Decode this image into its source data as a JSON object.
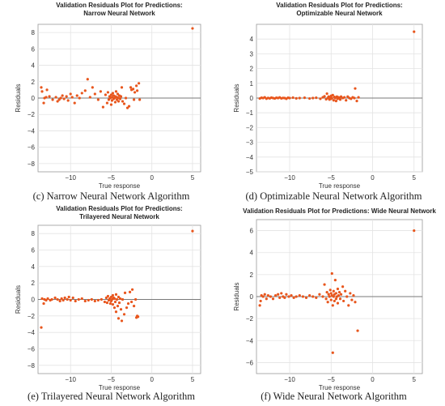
{
  "colors": {
    "marker": "#e8561d",
    "grid": "#e3e3e3",
    "axis": "#999999",
    "zero": "#7a7a7a"
  },
  "chart_data": [
    {
      "type": "scatter",
      "title_lines": [
        "Validation Residuals Plot for Predictions:",
        "Narrow Neural Network"
      ],
      "caption": "(c) Narrow Neural Network Algorithm",
      "xlabel": "True response",
      "ylabel": "Residuals",
      "xlim": [
        -14,
        6
      ],
      "ylim": [
        -9,
        9
      ],
      "xticks": [
        -10,
        -5,
        0,
        5
      ],
      "yticks": [
        -8,
        -6,
        -4,
        -2,
        0,
        2,
        4,
        6,
        8
      ],
      "grid": true,
      "points": [
        [
          -13.6,
          1.3
        ],
        [
          -13.5,
          0.8
        ],
        [
          -13.3,
          -0.6
        ],
        [
          -13.2,
          0.0
        ],
        [
          -13.0,
          0.1
        ],
        [
          -12.9,
          1.0
        ],
        [
          -12.6,
          0.2
        ],
        [
          -12.2,
          -0.2
        ],
        [
          -11.8,
          0.1
        ],
        [
          -11.6,
          -0.4
        ],
        [
          -11.4,
          -0.2
        ],
        [
          -11.2,
          0.0
        ],
        [
          -11.0,
          0.3
        ],
        [
          -10.8,
          -0.1
        ],
        [
          -10.5,
          0.2
        ],
        [
          -10.3,
          -0.3
        ],
        [
          -10.0,
          0.5
        ],
        [
          -9.8,
          0.1
        ],
        [
          -9.5,
          -0.6
        ],
        [
          -9.2,
          0.3
        ],
        [
          -8.9,
          0.0
        ],
        [
          -8.6,
          0.6
        ],
        [
          -8.2,
          0.9
        ],
        [
          -7.9,
          2.3
        ],
        [
          -7.6,
          0.1
        ],
        [
          -7.3,
          1.3
        ],
        [
          -7.0,
          0.5
        ],
        [
          -6.6,
          -0.2
        ],
        [
          -6.3,
          0.8
        ],
        [
          -6.0,
          -1.1
        ],
        [
          -5.7,
          0.4
        ],
        [
          -5.5,
          -0.6
        ],
        [
          -5.4,
          0.7
        ],
        [
          -5.3,
          -0.2
        ],
        [
          -5.2,
          0.2
        ],
        [
          -5.1,
          0.0
        ],
        [
          -5.0,
          -0.8
        ],
        [
          -5.0,
          0.4
        ],
        [
          -4.9,
          0.1
        ],
        [
          -4.9,
          -0.3
        ],
        [
          -4.8,
          0.6
        ],
        [
          -4.7,
          -0.1
        ],
        [
          -4.7,
          0.3
        ],
        [
          -4.6,
          0.0
        ],
        [
          -4.5,
          -0.5
        ],
        [
          -4.5,
          0.2
        ],
        [
          -4.4,
          0.8
        ],
        [
          -4.3,
          -0.2
        ],
        [
          -4.3,
          0.1
        ],
        [
          -4.2,
          0.5
        ],
        [
          -4.1,
          -0.4
        ],
        [
          -4.1,
          0.0
        ],
        [
          -4.0,
          0.3
        ],
        [
          -3.9,
          -0.1
        ],
        [
          -3.8,
          0.2
        ],
        [
          -3.7,
          1.3
        ],
        [
          -3.6,
          -0.4
        ],
        [
          -3.4,
          -0.7
        ],
        [
          -3.2,
          0.0
        ],
        [
          -3.0,
          -1.2
        ],
        [
          -2.8,
          -1.0
        ],
        [
          -2.6,
          1.3
        ],
        [
          -2.5,
          1.0
        ],
        [
          -2.3,
          1.1
        ],
        [
          -2.2,
          -0.2
        ],
        [
          -2.1,
          0.7
        ],
        [
          -1.9,
          1.5
        ],
        [
          -1.8,
          0.9
        ],
        [
          -1.6,
          1.8
        ],
        [
          -1.5,
          -0.2
        ],
        [
          5.0,
          8.5
        ]
      ]
    },
    {
      "type": "scatter",
      "title_lines": [
        "Validation Residuals Plot for Predictions:",
        "Optimizable Neural Network"
      ],
      "caption": "(d) Optimizable Neural Network Algorithm",
      "xlabel": "True response",
      "ylabel": "Residuals",
      "xlim": [
        -14,
        6
      ],
      "ylim": [
        -5,
        5
      ],
      "xticks": [
        -10,
        -5,
        0,
        5
      ],
      "yticks": [
        -5,
        -4,
        -3,
        -2,
        -1,
        0,
        1,
        2,
        3,
        4
      ],
      "grid": true,
      "points": [
        [
          -13.6,
          -0.03
        ],
        [
          -13.4,
          0.02
        ],
        [
          -13.2,
          0.0
        ],
        [
          -13.0,
          0.05
        ],
        [
          -12.8,
          -0.04
        ],
        [
          -12.6,
          0.01
        ],
        [
          -12.4,
          -0.02
        ],
        [
          -12.2,
          0.03
        ],
        [
          -12.0,
          0.0
        ],
        [
          -11.8,
          -0.03
        ],
        [
          -11.6,
          0.02
        ],
        [
          -11.4,
          0.0
        ],
        [
          -11.2,
          0.04
        ],
        [
          -11.0,
          -0.02
        ],
        [
          -10.8,
          0.01
        ],
        [
          -10.6,
          0.0
        ],
        [
          -10.4,
          -0.05
        ],
        [
          -10.2,
          0.02
        ],
        [
          -10.0,
          0.0
        ],
        [
          -9.6,
          0.03
        ],
        [
          -9.2,
          -0.02
        ],
        [
          -8.8,
          0.0
        ],
        [
          -8.2,
          0.02
        ],
        [
          -7.6,
          -0.03
        ],
        [
          -7.2,
          0.0
        ],
        [
          -6.8,
          0.02
        ],
        [
          -6.3,
          -0.05
        ],
        [
          -6.0,
          0.05
        ],
        [
          -5.8,
          0.12
        ],
        [
          -5.6,
          -0.08
        ],
        [
          -5.5,
          0.3
        ],
        [
          -5.4,
          0.0
        ],
        [
          -5.3,
          0.1
        ],
        [
          -5.2,
          -0.1
        ],
        [
          -5.1,
          0.05
        ],
        [
          -5.0,
          0.15
        ],
        [
          -5.0,
          -0.05
        ],
        [
          -4.9,
          0.0
        ],
        [
          -4.8,
          0.2
        ],
        [
          -4.7,
          -0.15
        ],
        [
          -4.6,
          0.08
        ],
        [
          -4.5,
          0.0
        ],
        [
          -4.4,
          -0.2
        ],
        [
          -4.3,
          0.1
        ],
        [
          -4.2,
          -0.05
        ],
        [
          -4.1,
          0.05
        ],
        [
          -4.0,
          0.0
        ],
        [
          -3.9,
          -0.1
        ],
        [
          -3.8,
          0.1
        ],
        [
          -3.6,
          0.0
        ],
        [
          -3.4,
          0.05
        ],
        [
          -3.2,
          -0.15
        ],
        [
          -3.0,
          0.1
        ],
        [
          -2.8,
          0.0
        ],
        [
          -2.6,
          -0.05
        ],
        [
          -2.4,
          0.05
        ],
        [
          -2.2,
          0.0
        ],
        [
          -2.1,
          0.65
        ],
        [
          -1.9,
          -0.2
        ],
        [
          -1.7,
          0.05
        ],
        [
          5.0,
          4.5
        ]
      ]
    },
    {
      "type": "scatter",
      "title_lines": [
        "Validation Residuals Plot for Predictions:",
        "Trilayered Neural Network"
      ],
      "caption": "(e) Trilayered Neural Network Algorithm",
      "xlabel": "True response",
      "ylabel": "Residuals",
      "xlim": [
        -14,
        6
      ],
      "ylim": [
        -9,
        9
      ],
      "xticks": [
        -10,
        -5,
        0,
        5
      ],
      "yticks": [
        -8,
        -6,
        -4,
        -2,
        0,
        2,
        4,
        6,
        8
      ],
      "grid": true,
      "points": [
        [
          -13.6,
          -3.4
        ],
        [
          -13.5,
          0.1
        ],
        [
          -13.3,
          -0.5
        ],
        [
          -13.2,
          0.0
        ],
        [
          -13.0,
          -0.1
        ],
        [
          -12.8,
          0.1
        ],
        [
          -12.5,
          -0.1
        ],
        [
          -12.3,
          0.0
        ],
        [
          -11.9,
          0.2
        ],
        [
          -11.6,
          0.0
        ],
        [
          -11.3,
          -0.2
        ],
        [
          -11.1,
          0.1
        ],
        [
          -10.9,
          -0.1
        ],
        [
          -10.7,
          0.2
        ],
        [
          -10.4,
          0.0
        ],
        [
          -10.2,
          0.3
        ],
        [
          -10.0,
          -0.1
        ],
        [
          -9.7,
          0.2
        ],
        [
          -9.4,
          -0.2
        ],
        [
          -9.0,
          0.0
        ],
        [
          -8.6,
          0.1
        ],
        [
          -8.2,
          -0.2
        ],
        [
          -7.8,
          -0.1
        ],
        [
          -7.4,
          0.0
        ],
        [
          -7.0,
          -0.2
        ],
        [
          -6.6,
          -0.1
        ],
        [
          -6.2,
          0.0
        ],
        [
          -5.8,
          -0.3
        ],
        [
          -5.6,
          0.2
        ],
        [
          -5.5,
          -0.4
        ],
        [
          -5.4,
          0.4
        ],
        [
          -5.3,
          -0.1
        ],
        [
          -5.2,
          0.1
        ],
        [
          -5.1,
          -0.5
        ],
        [
          -5.0,
          0.3
        ],
        [
          -5.0,
          -0.2
        ],
        [
          -4.9,
          0.0
        ],
        [
          -4.8,
          0.5
        ],
        [
          -4.8,
          -0.6
        ],
        [
          -4.7,
          0.2
        ],
        [
          -4.6,
          -1.0
        ],
        [
          -4.6,
          0.1
        ],
        [
          -4.5,
          -0.3
        ],
        [
          -4.4,
          0.6
        ],
        [
          -4.4,
          -1.5
        ],
        [
          -4.3,
          0.0
        ],
        [
          -4.2,
          -0.8
        ],
        [
          -4.1,
          0.3
        ],
        [
          -4.1,
          -2.3
        ],
        [
          -4.0,
          -0.4
        ],
        [
          -3.9,
          0.1
        ],
        [
          -3.8,
          -1.2
        ],
        [
          -3.7,
          -2.6
        ],
        [
          -3.6,
          0.0
        ],
        [
          -3.4,
          -1.8
        ],
        [
          -3.3,
          0.8
        ],
        [
          -3.1,
          -1.0
        ],
        [
          -2.9,
          -0.5
        ],
        [
          -2.7,
          0.9
        ],
        [
          -2.5,
          -0.3
        ],
        [
          -2.4,
          1.2
        ],
        [
          -2.2,
          -0.8
        ],
        [
          -2.0,
          0.0
        ],
        [
          -1.9,
          -2.2
        ],
        [
          -1.8,
          -2.0
        ],
        [
          -1.7,
          -2.1
        ],
        [
          5.0,
          8.3
        ]
      ]
    },
    {
      "type": "scatter",
      "title_lines": [
        "Validation Residuals Plot for Predictions: Wide Neural Network"
      ],
      "caption": "(f) Wide Neural Network Algorithm",
      "xlabel": "True response",
      "ylabel": "Residuals",
      "xlim": [
        -14,
        6
      ],
      "ylim": [
        -7,
        7
      ],
      "xticks": [
        -10,
        -5,
        0,
        5
      ],
      "yticks": [
        -6,
        -4,
        -2,
        0,
        2,
        4,
        6
      ],
      "grid": true,
      "points": [
        [
          -13.6,
          -0.8
        ],
        [
          -13.5,
          -0.4
        ],
        [
          -13.4,
          0.1
        ],
        [
          -13.2,
          0.0
        ],
        [
          -13.0,
          0.2
        ],
        [
          -12.8,
          -0.2
        ],
        [
          -12.6,
          0.1
        ],
        [
          -12.3,
          0.0
        ],
        [
          -12.0,
          -0.2
        ],
        [
          -11.7,
          0.1
        ],
        [
          -11.4,
          0.2
        ],
        [
          -11.2,
          -0.1
        ],
        [
          -11.0,
          0.3
        ],
        [
          -10.8,
          0.0
        ],
        [
          -10.6,
          -0.1
        ],
        [
          -10.4,
          0.2
        ],
        [
          -10.1,
          0.0
        ],
        [
          -9.8,
          0.1
        ],
        [
          -9.5,
          -0.1
        ],
        [
          -9.2,
          0.0
        ],
        [
          -8.8,
          0.1
        ],
        [
          -8.4,
          0.0
        ],
        [
          -8.0,
          -0.1
        ],
        [
          -7.6,
          0.1
        ],
        [
          -7.2,
          0.0
        ],
        [
          -6.8,
          -0.1
        ],
        [
          -6.4,
          0.2
        ],
        [
          -6.0,
          0.0
        ],
        [
          -5.8,
          1.1
        ],
        [
          -5.6,
          -0.2
        ],
        [
          -5.5,
          0.4
        ],
        [
          -5.4,
          -0.5
        ],
        [
          -5.3,
          0.2
        ],
        [
          -5.2,
          0.0
        ],
        [
          -5.1,
          0.6
        ],
        [
          -5.0,
          -0.3
        ],
        [
          -5.0,
          0.3
        ],
        [
          -4.9,
          2.1
        ],
        [
          -4.9,
          0.1
        ],
        [
          -4.8,
          -0.8
        ],
        [
          -4.7,
          0.5
        ],
        [
          -4.7,
          0.0
        ],
        [
          -4.6,
          -0.4
        ],
        [
          -4.6,
          0.2
        ],
        [
          -4.5,
          1.5
        ],
        [
          -4.4,
          0.3
        ],
        [
          -4.4,
          -0.2
        ],
        [
          -4.3,
          0.0
        ],
        [
          -4.2,
          0.7
        ],
        [
          -4.2,
          -0.6
        ],
        [
          -4.1,
          0.1
        ],
        [
          -4.0,
          0.4
        ],
        [
          -3.9,
          -0.2
        ],
        [
          -3.8,
          0.2
        ],
        [
          -3.6,
          0.9
        ],
        [
          -3.5,
          -0.4
        ],
        [
          -3.3,
          0.5
        ],
        [
          -3.1,
          0.0
        ],
        [
          -2.9,
          -0.8
        ],
        [
          -2.7,
          0.3
        ],
        [
          -2.5,
          -0.3
        ],
        [
          -2.3,
          0.1
        ],
        [
          -2.1,
          -0.5
        ],
        [
          -4.8,
          -5.1
        ],
        [
          -1.8,
          -3.1
        ],
        [
          5.0,
          6.0
        ]
      ]
    }
  ]
}
